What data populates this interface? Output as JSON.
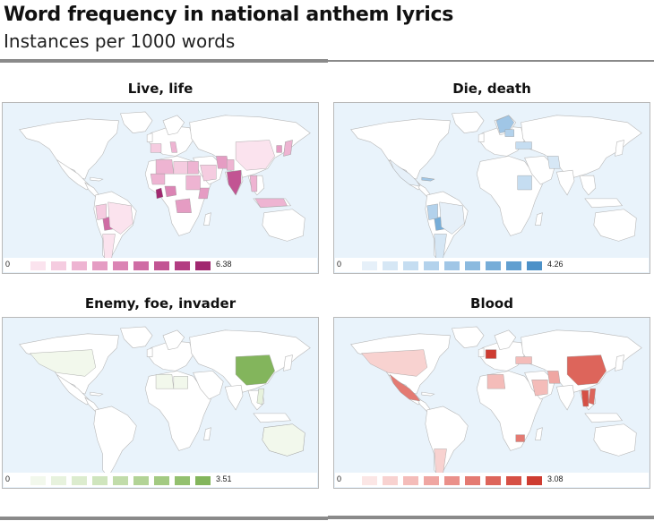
{
  "header": {
    "title": "Word frequency in national anthem lyrics",
    "subtitle": "Instances per 1000 words"
  },
  "panels": [
    {
      "title": "Live, life",
      "min_label": "0",
      "max_label": "6.38",
      "scale_colors": [
        "#fbe3ee",
        "#f5cce0",
        "#eeb4d2",
        "#e59cc3",
        "#db84b4",
        "#cf6ca4",
        "#c25493",
        "#b33d82",
        "#a12870"
      ],
      "countries": [
        {
          "name": "Ghana",
          "level": 9
        },
        {
          "name": "India",
          "level": 7
        },
        {
          "name": "Bolivia",
          "level": 6
        },
        {
          "name": "Algeria",
          "level": 3
        },
        {
          "name": "Libya",
          "level": 2
        },
        {
          "name": "Egypt",
          "level": 3
        },
        {
          "name": "Saudi Arabia",
          "level": 2
        },
        {
          "name": "Sudan",
          "level": 3
        },
        {
          "name": "Ethiopia",
          "level": 4
        },
        {
          "name": "Nigeria",
          "level": 5
        },
        {
          "name": "Congo",
          "level": 4
        },
        {
          "name": "Mali",
          "level": 3
        },
        {
          "name": "Iran",
          "level": 4
        },
        {
          "name": "Pakistan",
          "level": 3
        },
        {
          "name": "China",
          "level": 1
        },
        {
          "name": "Thailand",
          "level": 3
        },
        {
          "name": "Brazil",
          "level": 1
        },
        {
          "name": "Argentina",
          "level": 1
        },
        {
          "name": "Peru",
          "level": 2
        },
        {
          "name": "Indonesia",
          "level": 3
        },
        {
          "name": "Italy",
          "level": 3
        },
        {
          "name": "Spain",
          "level": 2
        },
        {
          "name": "Japan",
          "level": 3
        },
        {
          "name": "Korea",
          "level": 4
        }
      ]
    },
    {
      "title": "Die, death",
      "min_label": "0",
      "max_label": "4.26",
      "scale_colors": [
        "#e6f0f9",
        "#d6e7f5",
        "#c5ddf1",
        "#b3d2ec",
        "#a0c6e6",
        "#8bbadf",
        "#76add8",
        "#619fd0",
        "#4c91c8"
      ],
      "countries": [
        {
          "name": "Bolivia",
          "level": 7
        },
        {
          "name": "Peru",
          "level": 4
        },
        {
          "name": "Brazil",
          "level": 1
        },
        {
          "name": "Argentina",
          "level": 2
        },
        {
          "name": "Sudan",
          "level": 3
        },
        {
          "name": "Iran",
          "level": 2
        },
        {
          "name": "Scandinavia",
          "level": 5
        },
        {
          "name": "Poland",
          "level": 4
        },
        {
          "name": "Turkey",
          "level": 3
        },
        {
          "name": "Mexico",
          "level": 1
        },
        {
          "name": "Cuba",
          "level": 5
        }
      ]
    },
    {
      "title": "Enemy, foe, invader",
      "min_label": "0",
      "max_label": "3.51",
      "scale_colors": [
        "#f2f8ec",
        "#e7f2dd",
        "#dcecce",
        "#cfe5bd",
        "#c1dcaa",
        "#b2d396",
        "#a3ca82",
        "#93c06f",
        "#83b55c"
      ],
      "countries": [
        {
          "name": "China",
          "level": 9
        },
        {
          "name": "USA",
          "level": 1
        },
        {
          "name": "Australia",
          "level": 1
        },
        {
          "name": "Algeria",
          "level": 1
        },
        {
          "name": "Libya",
          "level": 1
        },
        {
          "name": "Vietnam",
          "level": 2
        }
      ]
    },
    {
      "title": "Blood",
      "min_label": "0",
      "max_label": "3.08",
      "scale_colors": [
        "#fbe6e5",
        "#f8d2d0",
        "#f4bcb9",
        "#efa6a2",
        "#ea908a",
        "#e47a72",
        "#dd655b",
        "#d65045",
        "#ce3c31"
      ],
      "countries": [
        {
          "name": "China",
          "level": 7
        },
        {
          "name": "France",
          "level": 9
        },
        {
          "name": "Thailand",
          "level": 8
        },
        {
          "name": "Vietnam",
          "level": 7
        },
        {
          "name": "Mexico",
          "level": 6
        },
        {
          "name": "USA",
          "level": 2
        },
        {
          "name": "Saudi Arabia",
          "level": 3
        },
        {
          "name": "Iran",
          "level": 4
        },
        {
          "name": "Algeria",
          "level": 3
        },
        {
          "name": "Argentina",
          "level": 2
        },
        {
          "name": "Zimbabwe",
          "level": 6
        },
        {
          "name": "Turkey",
          "level": 3
        }
      ]
    }
  ]
}
